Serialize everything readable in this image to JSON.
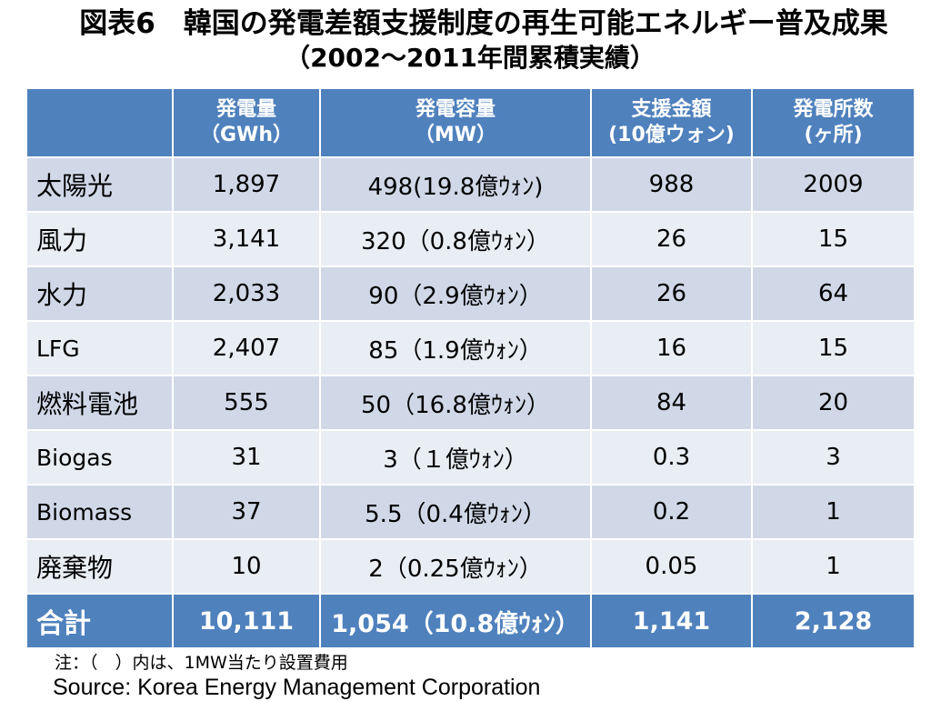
{
  "title": {
    "line1": "図表6　韓国の発電差額支援制度の再生可能エネルギー普及成果",
    "line2": "（2002～2011年間累積実績）"
  },
  "table": {
    "headers": [
      {
        "l1": "",
        "l2": ""
      },
      {
        "l1": "発電量",
        "l2": "（GWh）"
      },
      {
        "l1": "発電容量",
        "l2": "（MW）"
      },
      {
        "l1": "支援金額",
        "l2": "(10億ウォン)"
      },
      {
        "l1": "発電所数",
        "l2": "(ヶ所)"
      }
    ],
    "rows": [
      {
        "name": "太陽光",
        "gen": "1,897",
        "cap": "498(19.8億ｳｫﾝ)",
        "support": "988",
        "plants": "2009"
      },
      {
        "name": "風力",
        "gen": "3,141",
        "cap": "320（0.8億ｳｫﾝ）",
        "support": "26",
        "plants": "15"
      },
      {
        "name": "水力",
        "gen": "2,033",
        "cap": "90（2.9億ｳｫﾝ）",
        "support": "26",
        "plants": "64"
      },
      {
        "name": "LFG",
        "gen": "2,407",
        "cap": "85（1.9億ｳｫﾝ）",
        "support": "16",
        "plants": "15"
      },
      {
        "name": "燃料電池",
        "gen": "555",
        "cap": "50（16.8億ｳｫﾝ）",
        "support": "84",
        "plants": "20"
      },
      {
        "name": "Biogas",
        "gen": "31",
        "cap": "3（１億ｳｫﾝ）",
        "support": "0.3",
        "plants": "3"
      },
      {
        "name": "Biomass",
        "gen": "37",
        "cap": "5.5（0.4億ｳｫﾝ）",
        "support": "0.2",
        "plants": "1"
      },
      {
        "name": "廃棄物",
        "gen": "10",
        "cap": "2（0.25億ｳｫﾝ）",
        "support": "0.05",
        "plants": "1"
      }
    ],
    "total": {
      "name": "合計",
      "gen": "10,111",
      "cap": "1,054（10.8億ｳｫﾝ）",
      "support": "1,141",
      "plants": "2,128"
    }
  },
  "note": "注：（　）内は、1MW当たり設置費用",
  "source": "Source: Korea Energy Management Corporation",
  "colors": {
    "header_bg": "#4f81bd",
    "row_odd": "#d0d8e8",
    "row_even": "#e9edf4"
  }
}
